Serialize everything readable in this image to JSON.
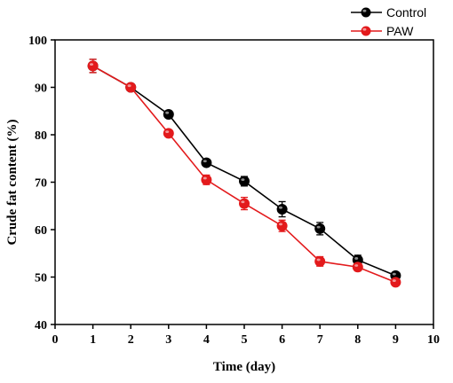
{
  "chart_data": {
    "type": "line",
    "title": "",
    "xlabel": "Time (day)",
    "ylabel": "Crude fat content (%)",
    "xlim": [
      0,
      10
    ],
    "ylim": [
      40,
      100
    ],
    "xticks": [
      0,
      1,
      2,
      3,
      4,
      5,
      6,
      7,
      8,
      9,
      10
    ],
    "yticks": [
      40,
      50,
      60,
      70,
      80,
      90,
      100
    ],
    "grid": false,
    "legend_position": "top-right outside",
    "series": [
      {
        "name": "Control",
        "color": "#000000",
        "x": [
          1,
          2,
          3,
          4,
          5,
          6,
          7,
          8,
          9
        ],
        "y": [
          94.5,
          90.0,
          84.3,
          74.1,
          70.2,
          64.3,
          60.2,
          53.6,
          50.3
        ],
        "error": [
          1.4,
          0.5,
          0.7,
          0.7,
          1.0,
          1.6,
          1.3,
          1.0,
          0.7
        ]
      },
      {
        "name": "PAW",
        "color": "#e31a1c",
        "x": [
          1,
          2,
          3,
          4,
          5,
          6,
          7,
          8,
          9
        ],
        "y": [
          94.5,
          90.0,
          80.3,
          70.5,
          65.5,
          60.8,
          53.3,
          52.1,
          48.9
        ],
        "error": [
          1.4,
          0.5,
          0.7,
          1.0,
          1.3,
          1.2,
          1.0,
          0.8,
          0.7
        ]
      }
    ]
  }
}
